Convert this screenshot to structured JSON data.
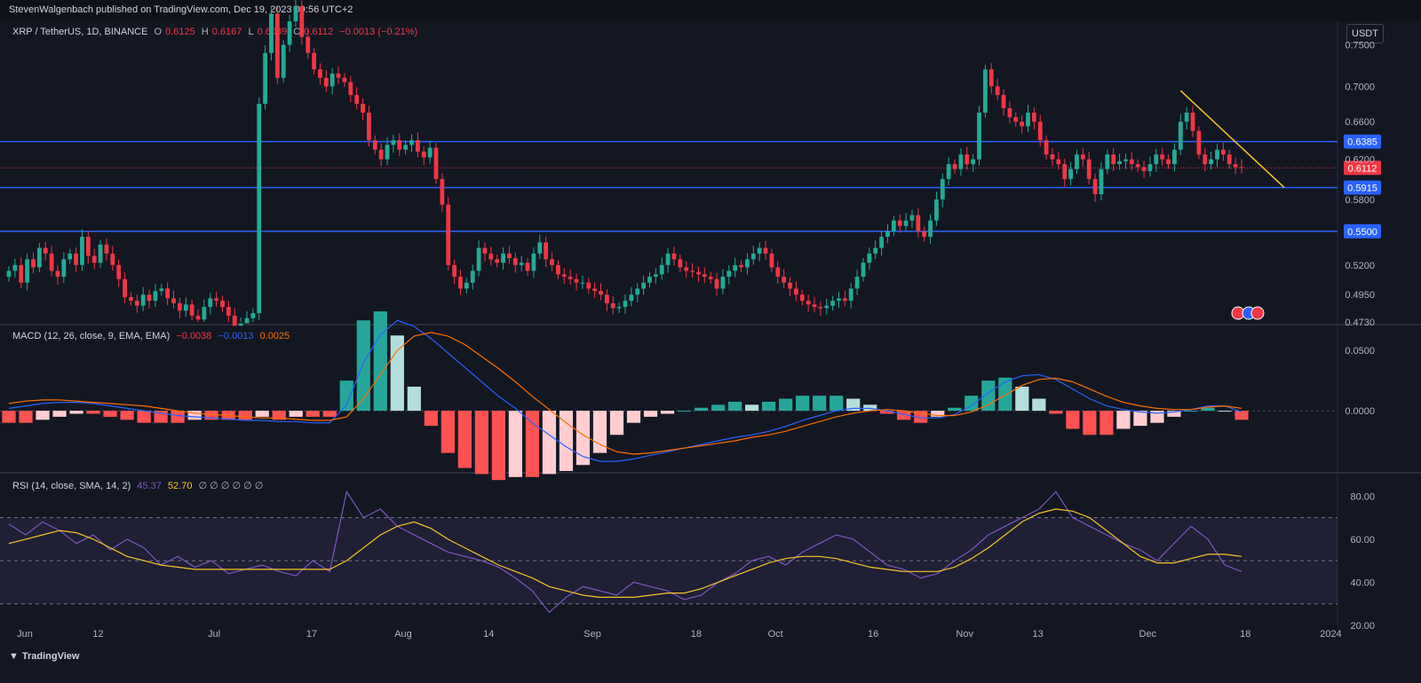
{
  "header": {
    "published": "StevenWalgenbach published on TradingView.com, Dec 19, 2023 09:56 UTC+2"
  },
  "symbol": {
    "name": "XRP / TetherUS, 1D, BINANCE",
    "o_label": "O",
    "o": "0.6125",
    "h_label": "H",
    "h": "0.6167",
    "l_label": "L",
    "l": "0.6089",
    "c_label": "C",
    "c": "0.6112",
    "change": "−0.0013 (−0.21%)",
    "currency_button": "USDT"
  },
  "macd_legend": {
    "label": "MACD (12, 26, close, 9, EMA, EMA)",
    "hist": "−0.0038",
    "macd": "−0.0013",
    "signal": "0.0025"
  },
  "rsi_legend": {
    "label": "RSI (14, close, SMA, 14, 2)",
    "rsi": "45.37",
    "ma": "52.70",
    "extras": "∅ ∅ ∅ ∅ ∅ ∅"
  },
  "footer": {
    "brand": "TradingView"
  },
  "colors": {
    "background": "#131722",
    "up": "#22ab94",
    "down": "#f23645",
    "level_line": "#2962ff",
    "trendline": "#f7c525",
    "macd": "#2962ff",
    "signal": "#ff6d00",
    "rsi": "#7e57c2",
    "rsi_ma": "#f7c525"
  },
  "chart_data": [
    {
      "type": "candlestick",
      "title": "XRP / TetherUS, 1D, BINANCE",
      "ylim": [
        0.473,
        0.78
      ],
      "y_scale": "log",
      "y_ticks": [
        "0.7500",
        "0.7000",
        "0.6600",
        "0.6200",
        "0.5800",
        "0.5200",
        "0.4950",
        "0.4730"
      ],
      "x_ticks": [
        "Jun",
        "12",
        "Jul",
        "17",
        "Aug",
        "14",
        "Sep",
        "18",
        "Oct",
        "16",
        "Nov",
        "13",
        "Dec",
        "18",
        "2024"
      ],
      "x_tick_days": [
        0,
        12,
        31,
        47,
        62,
        76,
        93,
        110,
        123,
        139,
        154,
        166,
        184,
        200,
        214
      ],
      "levels": [
        {
          "value": 0.6385,
          "label": "0.6385"
        },
        {
          "value": 0.5915,
          "label": "0.5915"
        },
        {
          "value": 0.55,
          "label": "0.5500"
        }
      ],
      "last_price": {
        "value": 0.6112,
        "label": "0.6112"
      },
      "trendline": [
        {
          "day": 192,
          "value": 0.695
        },
        {
          "day": 209,
          "value": 0.5915
        }
      ],
      "closes": [
        0.515,
        0.52,
        0.505,
        0.525,
        0.518,
        0.535,
        0.53,
        0.515,
        0.51,
        0.525,
        0.53,
        0.52,
        0.545,
        0.528,
        0.522,
        0.538,
        0.53,
        0.52,
        0.508,
        0.493,
        0.49,
        0.486,
        0.495,
        0.49,
        0.498,
        0.5,
        0.492,
        0.488,
        0.482,
        0.487,
        0.478,
        0.475,
        0.485,
        0.492,
        0.49,
        0.485,
        0.478,
        0.47,
        0.472,
        0.476,
        0.48,
        0.68,
        0.74,
        0.79,
        0.71,
        0.75,
        0.78,
        0.8,
        0.76,
        0.74,
        0.72,
        0.71,
        0.7,
        0.715,
        0.71,
        0.705,
        0.69,
        0.68,
        0.67,
        0.64,
        0.63,
        0.62,
        0.635,
        0.64,
        0.63,
        0.635,
        0.64,
        0.628,
        0.622,
        0.632,
        0.6,
        0.575,
        0.52,
        0.51,
        0.5,
        0.505,
        0.515,
        0.535,
        0.53,
        0.525,
        0.522,
        0.53,
        0.526,
        0.52,
        0.522,
        0.515,
        0.53,
        0.54,
        0.525,
        0.52,
        0.512,
        0.51,
        0.508,
        0.505,
        0.505,
        0.5,
        0.498,
        0.495,
        0.488,
        0.484,
        0.485,
        0.49,
        0.495,
        0.5,
        0.505,
        0.51,
        0.512,
        0.52,
        0.53,
        0.525,
        0.518,
        0.515,
        0.514,
        0.512,
        0.51,
        0.508,
        0.5,
        0.51,
        0.515,
        0.52,
        0.518,
        0.525,
        0.53,
        0.535,
        0.53,
        0.518,
        0.51,
        0.505,
        0.5,
        0.495,
        0.49,
        0.487,
        0.485,
        0.484,
        0.486,
        0.49,
        0.492,
        0.49,
        0.5,
        0.51,
        0.522,
        0.53,
        0.535,
        0.545,
        0.55,
        0.56,
        0.555,
        0.56,
        0.565,
        0.55,
        0.545,
        0.56,
        0.58,
        0.6,
        0.615,
        0.61,
        0.625,
        0.615,
        0.62,
        0.67,
        0.72,
        0.7,
        0.69,
        0.675,
        0.665,
        0.66,
        0.655,
        0.67,
        0.66,
        0.64,
        0.625,
        0.62,
        0.615,
        0.6,
        0.61,
        0.625,
        0.62,
        0.6,
        0.585,
        0.61,
        0.625,
        0.615,
        0.618,
        0.62,
        0.615,
        0.612,
        0.608,
        0.615,
        0.625,
        0.62,
        0.615,
        0.63,
        0.66,
        0.67,
        0.65,
        0.625,
        0.615,
        0.62,
        0.63,
        0.625,
        0.615,
        0.612,
        0.6112
      ]
    },
    {
      "type": "line",
      "title": "MACD (12, 26, close, 9, EMA, EMA)",
      "ylim": [
        -0.05,
        0.07
      ],
      "y_ticks": [
        "0.0500",
        "0.0000"
      ],
      "series": [
        {
          "name": "MACD",
          "values": [
            0.002,
            0.004,
            0.006,
            0.007,
            0.007,
            0.006,
            0.004,
            0.002,
            0.0,
            -0.002,
            -0.004,
            -0.005,
            -0.006,
            -0.007,
            -0.008,
            -0.008,
            -0.009,
            -0.009,
            -0.01,
            -0.01,
            0.005,
            0.04,
            0.063,
            0.075,
            0.07,
            0.06,
            0.048,
            0.036,
            0.024,
            0.012,
            0.002,
            -0.01,
            -0.02,
            -0.03,
            -0.038,
            -0.042,
            -0.042,
            -0.04,
            -0.037,
            -0.034,
            -0.031,
            -0.028,
            -0.025,
            -0.022,
            -0.02,
            -0.017,
            -0.013,
            -0.008,
            -0.004,
            0.0,
            0.002,
            0.002,
            0.0,
            -0.003,
            -0.006,
            -0.006,
            -0.003,
            0.004,
            0.015,
            0.024,
            0.029,
            0.03,
            0.026,
            0.018,
            0.01,
            0.004,
            0.001,
            -0.001,
            -0.002,
            -0.001,
            0.001,
            0.004,
            0.004,
            -0.001
          ]
        },
        {
          "name": "Signal",
          "values": [
            0.006,
            0.008,
            0.009,
            0.009,
            0.008,
            0.007,
            0.006,
            0.005,
            0.004,
            0.002,
            0.0,
            -0.002,
            -0.003,
            -0.004,
            -0.005,
            -0.006,
            -0.006,
            -0.007,
            -0.008,
            -0.008,
            -0.005,
            0.01,
            0.03,
            0.05,
            0.062,
            0.065,
            0.062,
            0.055,
            0.045,
            0.035,
            0.024,
            0.012,
            0.001,
            -0.01,
            -0.02,
            -0.028,
            -0.034,
            -0.036,
            -0.035,
            -0.033,
            -0.031,
            -0.029,
            -0.027,
            -0.025,
            -0.022,
            -0.02,
            -0.017,
            -0.013,
            -0.009,
            -0.005,
            -0.002,
            0.0,
            0.001,
            0.0,
            -0.002,
            -0.004,
            -0.004,
            -0.001,
            0.005,
            0.013,
            0.021,
            0.026,
            0.027,
            0.024,
            0.018,
            0.012,
            0.007,
            0.004,
            0.002,
            0.001,
            0.001,
            0.003,
            0.004,
            0.002
          ]
        }
      ]
    },
    {
      "type": "line",
      "title": "RSI (14, close, SMA, 14, 2)",
      "ylim": [
        20,
        90
      ],
      "y_ticks": [
        "80.00",
        "60.00",
        "40.00",
        "20.00"
      ],
      "bands": [
        70,
        50,
        30
      ],
      "series": [
        {
          "name": "RSI",
          "values": [
            67,
            62,
            68,
            64,
            58,
            62,
            55,
            60,
            56,
            48,
            52,
            47,
            50,
            44,
            46,
            48,
            45,
            43,
            50,
            45,
            82,
            70,
            74,
            66,
            62,
            58,
            54,
            52,
            50,
            47,
            42,
            36,
            26,
            33,
            38,
            36,
            34,
            40,
            38,
            36,
            32,
            34,
            40,
            44,
            50,
            52,
            48,
            54,
            58,
            62,
            60,
            54,
            48,
            46,
            42,
            44,
            50,
            55,
            62,
            66,
            70,
            74,
            82,
            70,
            66,
            62,
            58,
            55,
            50,
            58,
            66,
            60,
            48,
            45
          ]
        },
        {
          "name": "RSI-based MA",
          "values": [
            58,
            60,
            62,
            64,
            63,
            60,
            56,
            52,
            50,
            48,
            47,
            46,
            46,
            46,
            46,
            46,
            46,
            46,
            46,
            46,
            50,
            56,
            62,
            66,
            68,
            65,
            60,
            56,
            52,
            48,
            45,
            42,
            38,
            36,
            34,
            33,
            33,
            33,
            34,
            35,
            35,
            37,
            40,
            43,
            46,
            49,
            51,
            52,
            52,
            51,
            49,
            47,
            46,
            45,
            45,
            45,
            47,
            51,
            56,
            62,
            68,
            72,
            74,
            73,
            70,
            64,
            58,
            52,
            49,
            49,
            51,
            53,
            53,
            52
          ]
        }
      ]
    }
  ]
}
